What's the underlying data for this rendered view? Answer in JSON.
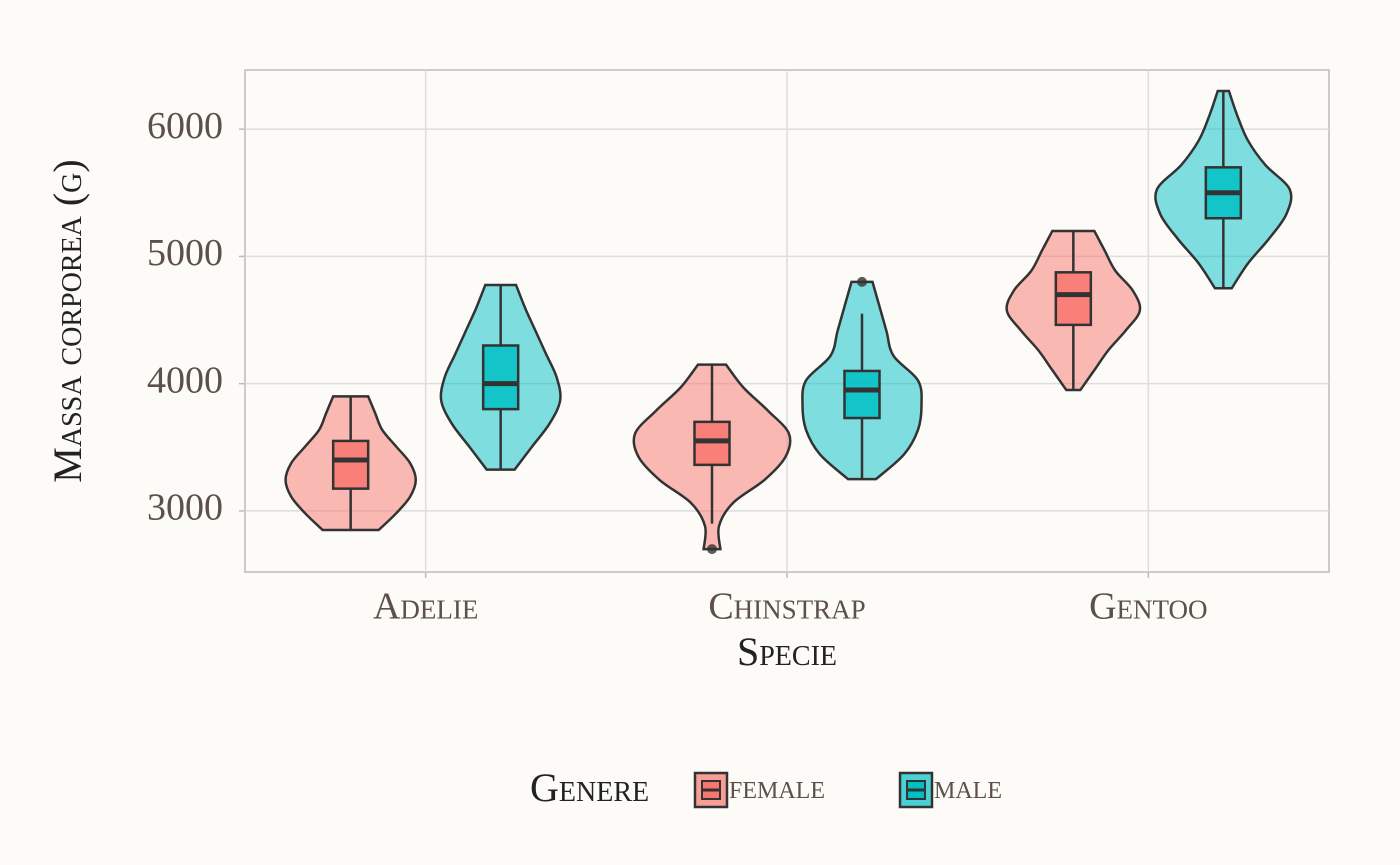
{
  "chart_data": {
    "type": "violin",
    "x_label": "Specie",
    "y_label": "Massa corporea (g)",
    "legend_title": "Genere",
    "legend_position": "bottom",
    "grid": true,
    "categories": [
      "Adelie",
      "Chinstrap",
      "Gentoo"
    ],
    "ylim": [
      2520,
      6465
    ],
    "yticks": [
      3000,
      4000,
      5000,
      6000
    ],
    "series": [
      {
        "name": "female",
        "color": "#f8766d",
        "violin_min": [
          2850,
          2700,
          3950
        ],
        "violin_max": [
          3900,
          4150,
          5200
        ],
        "density": [
          [
            0.4,
            0.65,
            0.85,
            0.93,
            0.85,
            0.65,
            0.45,
            0.35,
            0.25
          ],
          [
            0.12,
            0.1,
            0.3,
            0.75,
            1.05,
            1.1,
            0.8,
            0.45,
            0.2
          ],
          [
            0.1,
            0.3,
            0.5,
            0.75,
            0.95,
            0.85,
            0.6,
            0.45,
            0.3
          ]
        ],
        "whisker_low": [
          2850,
          2900,
          3950
        ],
        "q1": [
          3175,
          3362,
          4462
        ],
        "median": [
          3400,
          3550,
          4700
        ],
        "q3": [
          3550,
          3700,
          4875
        ],
        "whisker_high": [
          3900,
          4150,
          5200
        ],
        "outliers": [
          [],
          [
            2700
          ],
          []
        ]
      },
      {
        "name": "male",
        "color": "#00bfc4",
        "violin_min": [
          3325,
          3250,
          4750
        ],
        "violin_max": [
          4775,
          4800,
          6300
        ],
        "density": [
          [
            0.2,
            0.45,
            0.7,
            0.85,
            0.8,
            0.65,
            0.5,
            0.35,
            0.22
          ],
          [
            0.2,
            0.6,
            0.8,
            0.85,
            0.8,
            0.45,
            0.35,
            0.25,
            0.15
          ],
          [
            0.12,
            0.35,
            0.65,
            0.9,
            0.95,
            0.6,
            0.35,
            0.2,
            0.08
          ]
        ],
        "whisker_low": [
          3325,
          3250,
          4750
        ],
        "q1": [
          3800,
          3730,
          5300
        ],
        "median": [
          4000,
          3950,
          5500
        ],
        "q3": [
          4300,
          4100,
          5700
        ],
        "whisker_high": [
          4775,
          4550,
          6300
        ],
        "outliers": [
          [],
          [
            4800
          ],
          []
        ]
      }
    ]
  }
}
